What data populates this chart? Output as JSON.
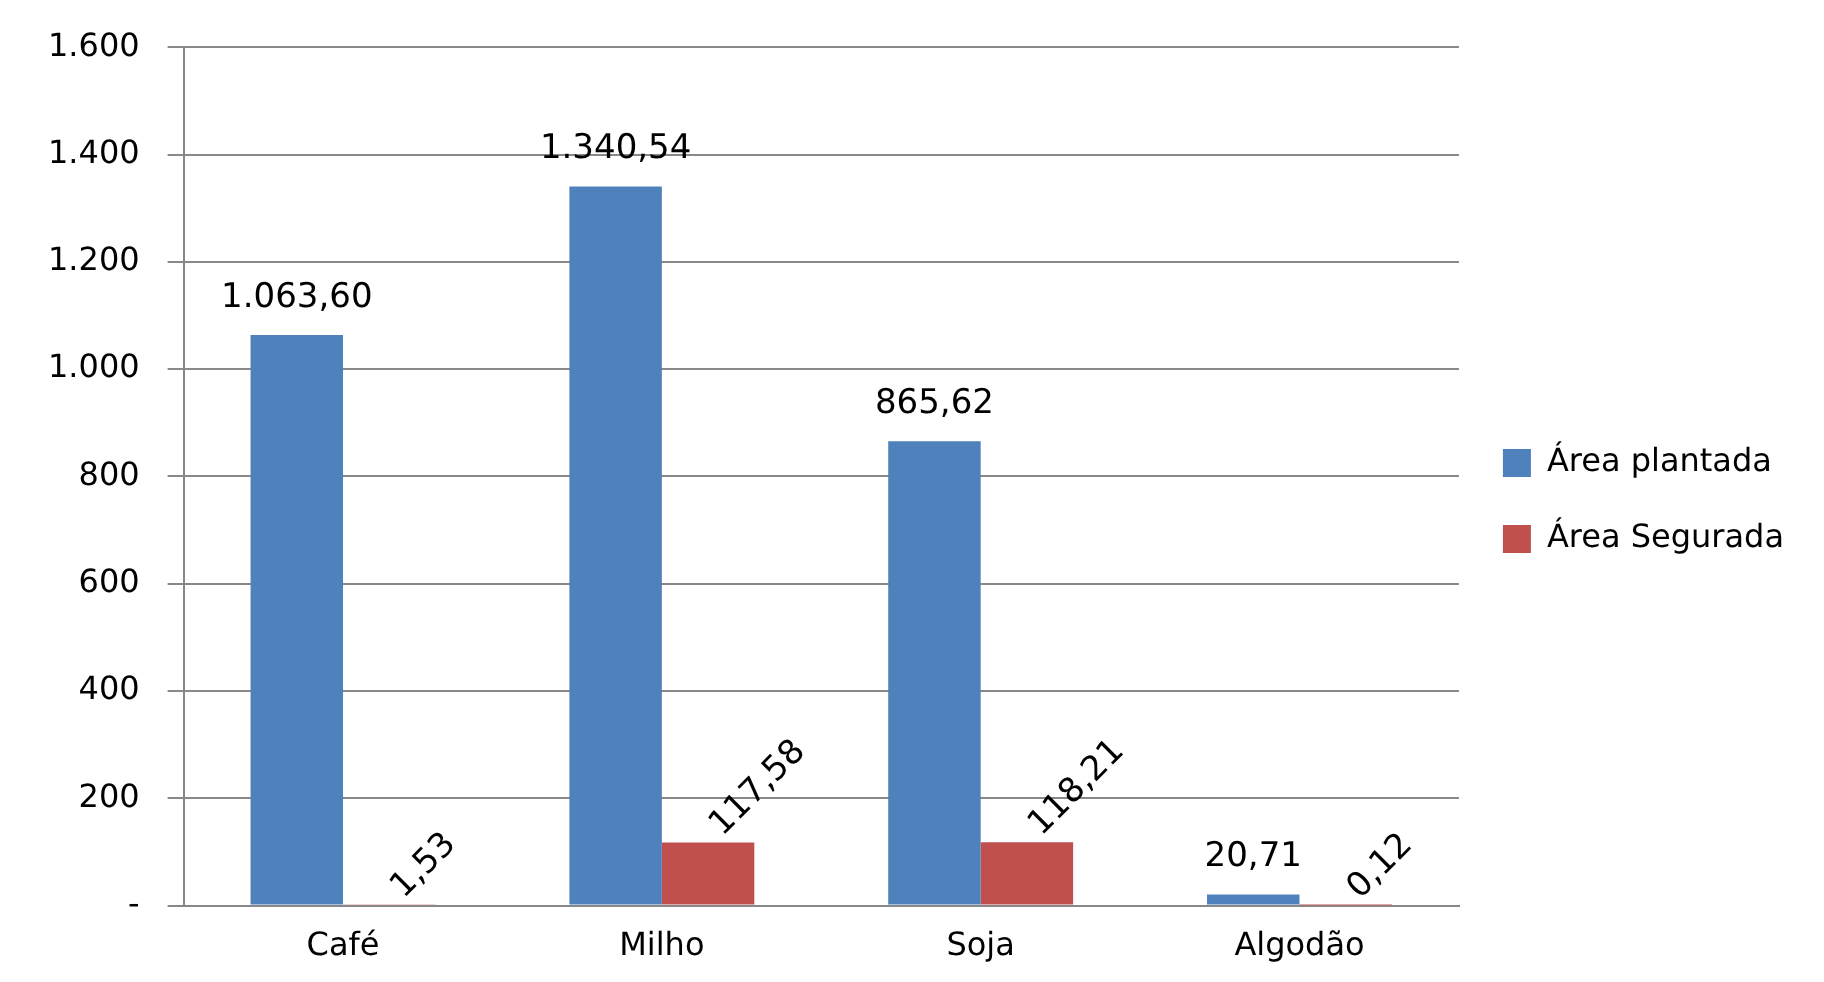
{
  "chart_data": {
    "type": "bar",
    "categories": [
      "Café",
      "Milho",
      "Soja",
      "Algodão"
    ],
    "series": [
      {
        "name": "Área plantada",
        "color": "#4f81bd",
        "values": [
          1063.6,
          1340.54,
          865.62,
          20.71
        ],
        "value_labels": [
          "1.063,60",
          "1.340,54",
          "865,62",
          "20,71"
        ]
      },
      {
        "name": "Área Segurada",
        "color": "#c0504d",
        "values": [
          1.53,
          117.58,
          118.21,
          0.12
        ],
        "value_labels": [
          "1,53",
          "117,58",
          "118,21",
          "0,12"
        ]
      }
    ],
    "ylim": [
      0,
      1600
    ],
    "yticks": [
      {
        "value": 0,
        "label": "-"
      },
      {
        "value": 200,
        "label": "200"
      },
      {
        "value": 400,
        "label": "400"
      },
      {
        "value": 600,
        "label": "600"
      },
      {
        "value": 800,
        "label": "800"
      },
      {
        "value": 1000,
        "label": "1.000"
      },
      {
        "value": 1200,
        "label": "1.200"
      },
      {
        "value": 1400,
        "label": "1.400"
      },
      {
        "value": 1600,
        "label": "1.600"
      }
    ],
    "grid": "y",
    "legend": "right"
  }
}
